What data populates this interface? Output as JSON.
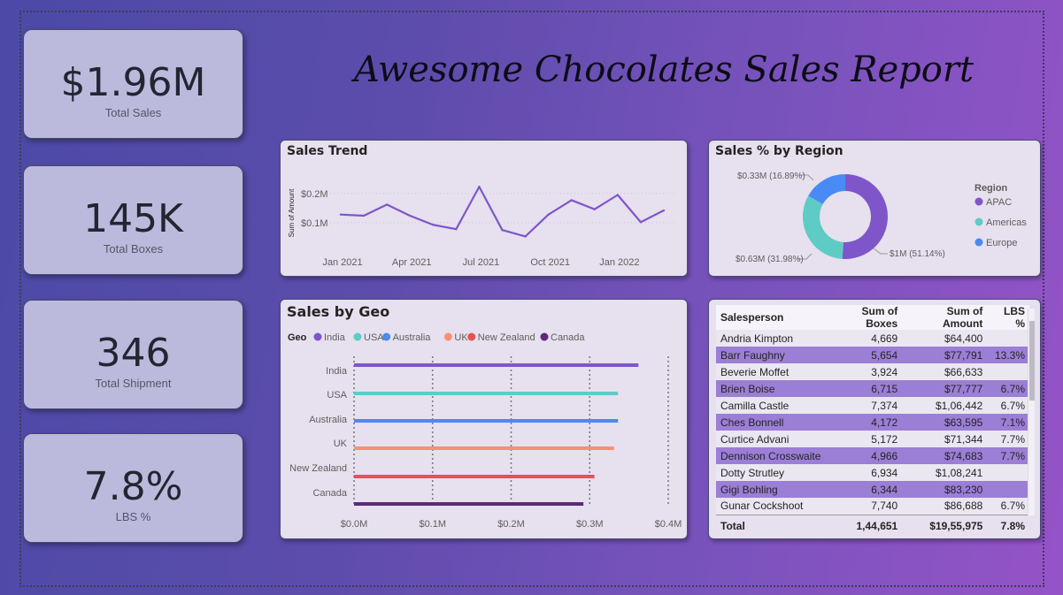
{
  "report_title": "Awesome Chocolates Sales Report",
  "kpis": [
    {
      "value": "$1.96M",
      "label": "Total Sales"
    },
    {
      "value": "145K",
      "label": "Total Boxes"
    },
    {
      "value": "346",
      "label": "Total Shipment"
    },
    {
      "value": "7.8%",
      "label": "LBS %"
    }
  ],
  "colors": {
    "line": "#7f56c9",
    "india": "#7f56c9",
    "usa": "#5ecbc5",
    "australia": "#4a8af4",
    "uk": "#fd8f72",
    "newzealand": "#e55350",
    "canada": "#5c2a78",
    "apac": "#7f56c9",
    "americas": "#5ecbc5",
    "europe": "#4a8af4"
  },
  "charts": {
    "trend": {
      "title": "Sales Trend",
      "ylabel": "Sum of Amount",
      "ytick_labels": [
        "$0.2M",
        "$0.1M"
      ],
      "xtick_labels": [
        "Jan 2021",
        "Apr 2021",
        "Jul 2021",
        "Oct 2021",
        "Jan 2022"
      ]
    },
    "region": {
      "title": "Sales % by Region",
      "legend_title": "Region",
      "labels": [
        "$0.33M (16.89%)",
        "$0.63M (31.98%)",
        "$1M (51.14%)"
      ]
    },
    "geo": {
      "title": "Sales by Geo",
      "legend_title": "Geo",
      "xtick_labels": [
        "$0.0M",
        "$0.1M",
        "$0.2M",
        "$0.3M",
        "$0.4M"
      ]
    }
  },
  "chart_data": [
    {
      "type": "line",
      "title": "Sales Trend",
      "ylabel": "Sum of Amount",
      "x": [
        "Jan 2021",
        "Feb 2021",
        "Mar 2021",
        "Apr 2021",
        "May 2021",
        "Jun 2021",
        "Jul 2021",
        "Aug 2021",
        "Sep 2021",
        "Oct 2021",
        "Nov 2021",
        "Dec 2021",
        "Jan 2022",
        "Feb 2022",
        "Mar 2022"
      ],
      "values": [
        0.128,
        0.124,
        0.162,
        0.124,
        0.093,
        0.078,
        0.223,
        0.075,
        0.053,
        0.128,
        0.177,
        0.146,
        0.195,
        0.102,
        0.142
      ],
      "ylim": [
        0,
        0.26
      ],
      "grid": true
    },
    {
      "type": "pie",
      "title": "Sales % by Region",
      "legend_title": "Region",
      "categories": [
        "APAC",
        "Americas",
        "Europe"
      ],
      "values": [
        51.14,
        31.98,
        16.89
      ],
      "amounts": [
        "$1M",
        "$0.63M",
        "$0.33M"
      ],
      "legend_position": "right"
    },
    {
      "type": "bar",
      "title": "Sales by Geo",
      "legend_title": "Geo",
      "categories": [
        "India",
        "USA",
        "Australia",
        "UK",
        "New Zealand",
        "Canada"
      ],
      "values": [
        0.362,
        0.336,
        0.336,
        0.331,
        0.306,
        0.292
      ],
      "xlim": [
        0,
        0.4
      ],
      "legend_position": "top"
    },
    {
      "type": "table",
      "columns": [
        "Salesperson",
        "Sum of Boxes",
        "Sum of Amount",
        "LBS %"
      ],
      "rows": [
        [
          "Andria Kimpton",
          "4,669",
          "$64,400",
          ""
        ],
        [
          "Barr Faughny",
          "5,654",
          "$77,791",
          "13.3%"
        ],
        [
          "Beverie Moffet",
          "3,924",
          "$66,633",
          ""
        ],
        [
          "Brien Boise",
          "6,715",
          "$77,777",
          "6.7%"
        ],
        [
          "Camilla Castle",
          "7,374",
          "$1,06,442",
          "6.7%"
        ],
        [
          "Ches Bonnell",
          "4,172",
          "$63,595",
          "7.1%"
        ],
        [
          "Curtice Advani",
          "5,172",
          "$71,344",
          "7.7%"
        ],
        [
          "Dennison Crosswaite",
          "4,966",
          "$74,683",
          "7.7%"
        ],
        [
          "Dotty Strutley",
          "6,934",
          "$1,08,241",
          ""
        ],
        [
          "Gigi Bohling",
          "6,344",
          "$83,230",
          ""
        ],
        [
          "Gunar Cockshoot",
          "7,740",
          "$86,688",
          "6.7%"
        ]
      ],
      "total": [
        "Total",
        "1,44,651",
        "$19,55,975",
        "7.8%"
      ]
    }
  ]
}
